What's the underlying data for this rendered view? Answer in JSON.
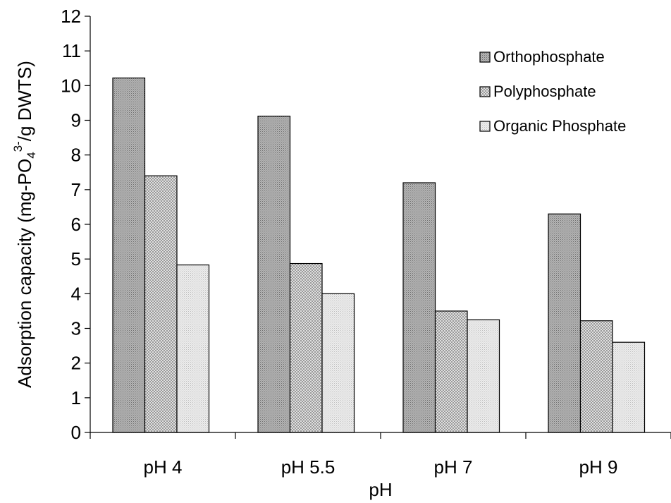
{
  "chart_data": {
    "type": "bar",
    "categories": [
      "pH 4",
      "pH 5.5",
      "pH 7",
      "pH 9"
    ],
    "series": [
      {
        "name": "Orthophosphate",
        "values": [
          10.22,
          9.12,
          7.2,
          6.3
        ],
        "color": "#a6a6a6",
        "pattern": "dense-dots"
      },
      {
        "name": "Polyphosphate",
        "values": [
          7.4,
          4.87,
          3.5,
          3.22
        ],
        "color": "#cfcfcf",
        "pattern": "checker"
      },
      {
        "name": "Organic Phosphate",
        "values": [
          4.83,
          4.0,
          3.25,
          2.6
        ],
        "color": "#e4e4e4",
        "pattern": "fine-dots"
      }
    ],
    "xlabel": "pH",
    "ylabel": {
      "prefix": "Adsorption capacity (mg-PO",
      "sub": "4",
      "sup": "3-",
      "suffix": "/g DWTS)"
    },
    "ylim": [
      0,
      12
    ],
    "yticks": [
      0,
      1,
      2,
      3,
      4,
      5,
      6,
      7,
      8,
      9,
      10,
      11,
      12
    ],
    "grid": false,
    "legend_position": "top-right"
  }
}
